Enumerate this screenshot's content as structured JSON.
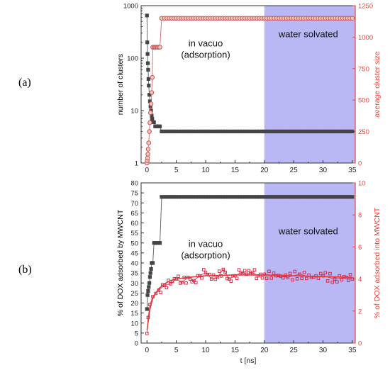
{
  "figure": {
    "panel_labels": [
      "(a)",
      "(b)"
    ]
  },
  "chart_data": [
    {
      "panel": "(a)",
      "type": "line",
      "xlabel": "",
      "ylabel_left": "number of clusters",
      "ylabel_right": "average cluster size",
      "left_axis_color": "#000000",
      "right_axis_color": "#e8463c",
      "xlim": [
        -1,
        35.5
      ],
      "ylim_left": [
        1,
        1000
      ],
      "ylim_right": [
        0,
        1250
      ],
      "left_scale": "log",
      "x_ticks": [
        "0",
        "5",
        "10",
        "15",
        "20",
        "25",
        "30",
        "35"
      ],
      "y_ticks_left": [
        "1",
        "10",
        "100",
        "1000"
      ],
      "y_ticks_right": [
        "0",
        "250",
        "500",
        "750",
        "1000",
        "1250"
      ],
      "annotations": [
        {
          "text": [
            "in vacuo",
            "(adsorption)"
          ],
          "x": 10,
          "y_fraction": 0.74
        },
        {
          "text": [
            "water solvated"
          ],
          "x": 27.5,
          "y_fraction": 0.8
        }
      ],
      "shaded_region": {
        "x_from": 20,
        "x_to": 35.5,
        "color": "#aeaaf3"
      },
      "series": [
        {
          "name": "",
          "axis": "left",
          "color": "#444444",
          "marker": "square",
          "x": [
            0.0,
            0.05,
            0.1,
            0.15,
            0.2,
            0.25,
            0.3,
            0.4,
            0.5,
            0.6,
            0.7,
            0.8,
            0.9,
            1.0,
            1.2,
            1.4,
            1.6,
            1.8,
            2.0,
            2.2,
            2.5,
            3.0,
            5,
            10,
            15,
            20,
            25,
            30,
            35
          ],
          "y": [
            650,
            200,
            120,
            80,
            60,
            40,
            30,
            20,
            15,
            12,
            10,
            8,
            7,
            6,
            6,
            5,
            5,
            5,
            5,
            5,
            4,
            4,
            4,
            4,
            4,
            4,
            4,
            4,
            4
          ]
        },
        {
          "name": "",
          "axis": "right",
          "color": "#c8555a",
          "marker": "open-circle",
          "x": [
            0.0,
            0.05,
            0.1,
            0.15,
            0.2,
            0.3,
            0.4,
            0.5,
            0.6,
            0.7,
            0.8,
            0.9,
            1.0,
            1.2,
            1.4,
            1.6,
            1.8,
            2.0,
            2.2,
            2.5,
            3.0,
            5,
            10,
            15,
            20,
            25,
            30,
            35
          ],
          "y": [
            0,
            20,
            40,
            70,
            110,
            160,
            250,
            320,
            400,
            470,
            560,
            680,
            920,
            920,
            920,
            920,
            920,
            920,
            920,
            1150,
            1150,
            1150,
            1150,
            1150,
            1150,
            1150,
            1150,
            1150
          ]
        }
      ]
    },
    {
      "panel": "(b)",
      "type": "line",
      "xlabel": "t [ns]",
      "ylabel_left": "% of DOX adsorbed by MWCNT",
      "ylabel_right": "% of DOX adsorbed into MWCNT",
      "left_axis_color": "#000000",
      "right_axis_color": "#e8463c",
      "xlim": [
        -1,
        35.5
      ],
      "ylim_left": [
        0,
        80
      ],
      "ylim_right": [
        0,
        10
      ],
      "x_ticks": [
        "0",
        "5",
        "10",
        "15",
        "20",
        "25",
        "30",
        "35"
      ],
      "y_ticks_left": [
        "0",
        "5",
        "10",
        "15",
        "20",
        "25",
        "30",
        "35",
        "40",
        "45",
        "50",
        "55",
        "60",
        "65",
        "70",
        "75",
        "80"
      ],
      "y_ticks_right": [
        "0",
        "2",
        "4",
        "6",
        "8",
        "10"
      ],
      "annotations": [
        {
          "text": [
            "in vacuo",
            "(adsorption)"
          ],
          "x": 10,
          "y_fraction": 0.6
        },
        {
          "text": [
            "water solvated"
          ],
          "x": 27.5,
          "y_fraction": 0.68
        }
      ],
      "shaded_region": {
        "x_from": 20,
        "x_to": 35.5,
        "color": "#aeaaf3"
      },
      "series": [
        {
          "name": "",
          "axis": "left",
          "color": "#444444",
          "marker": "square",
          "x": [
            0.0,
            0.1,
            0.2,
            0.3,
            0.4,
            0.5,
            0.6,
            0.7,
            0.8,
            0.9,
            1.0,
            1.2,
            1.4,
            1.6,
            1.8,
            2.0,
            2.2,
            2.5,
            3,
            5,
            10,
            15,
            20,
            25,
            30,
            35
          ],
          "y": [
            17,
            24,
            26,
            28,
            30,
            33,
            35,
            37,
            40,
            40,
            40,
            50,
            50,
            50,
            50,
            50,
            50,
            73,
            73,
            73,
            73,
            73,
            73,
            73,
            73,
            73
          ]
        },
        {
          "name": "",
          "axis": "right",
          "color": "#d81e3c",
          "marker": "open-square",
          "x": [
            0.0,
            0.2,
            0.5,
            1.0,
            1.5,
            2.0,
            3,
            4,
            5,
            6,
            7,
            8,
            9,
            10,
            11,
            12,
            13,
            14,
            15,
            16,
            17,
            18,
            19,
            20,
            22,
            24,
            26,
            28,
            30,
            32,
            34,
            35
          ],
          "y": [
            0.6,
            1.6,
            2.4,
            2.9,
            3.1,
            3.3,
            3.6,
            3.7,
            4.0,
            3.8,
            4.1,
            3.9,
            4.2,
            4.4,
            4.0,
            4.1,
            4.6,
            4.0,
            4.2,
            4.4,
            4.3,
            4.4,
            4.2,
            4.3,
            4.2,
            4.1,
            4.3,
            4.1,
            4.2,
            4.0,
            4.1,
            4.0
          ]
        },
        {
          "name": "",
          "axis": "right",
          "color": "#e33c3c",
          "marker": "none",
          "x": [
            0.0,
            0.5,
            1.0,
            2.0,
            3,
            4,
            5,
            7,
            10,
            15,
            20,
            25,
            30,
            35
          ],
          "y": [
            0.8,
            2.1,
            2.8,
            3.4,
            3.7,
            3.9,
            4.0,
            4.1,
            4.2,
            4.25,
            4.25,
            4.2,
            4.15,
            4.1
          ]
        }
      ]
    }
  ]
}
